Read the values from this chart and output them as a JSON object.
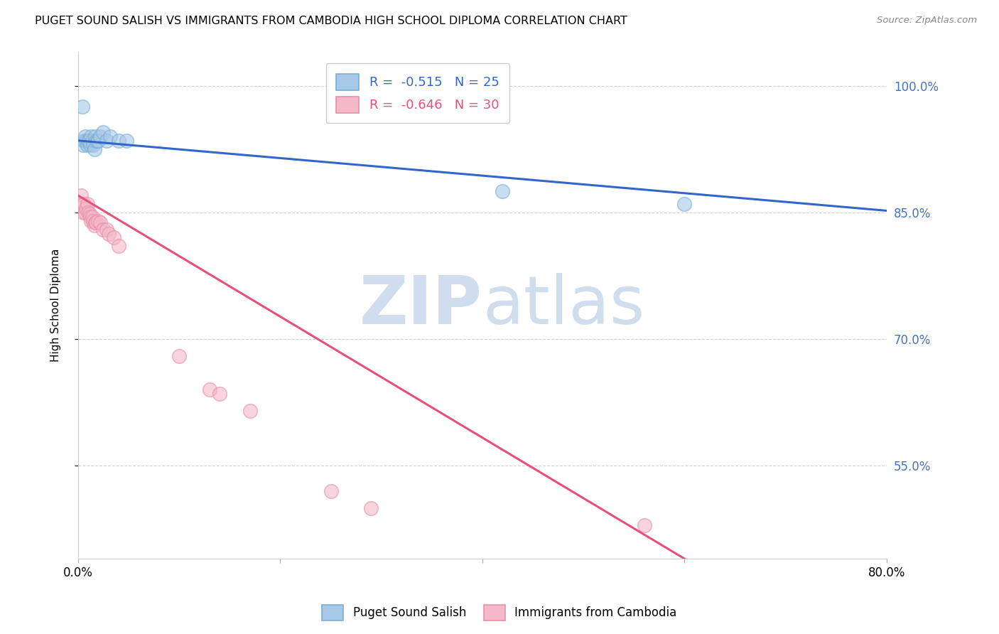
{
  "title": "PUGET SOUND SALISH VS IMMIGRANTS FROM CAMBODIA HIGH SCHOOL DIPLOMA CORRELATION CHART",
  "source": "Source: ZipAtlas.com",
  "ylabel": "High School Diploma",
  "ytick_labels": [
    "100.0%",
    "85.0%",
    "70.0%",
    "55.0%"
  ],
  "ytick_values": [
    1.0,
    0.85,
    0.7,
    0.55
  ],
  "xlim": [
    0.0,
    0.8
  ],
  "ylim": [
    0.44,
    1.04
  ],
  "blue_label": "Puget Sound Salish",
  "pink_label": "Immigrants from Cambodia",
  "blue_R": "-0.515",
  "blue_N": "25",
  "pink_R": "-0.646",
  "pink_N": "30",
  "blue_color": "#a8c8e8",
  "pink_color": "#f4b8c8",
  "blue_edge_color": "#7aafd4",
  "pink_edge_color": "#e890a8",
  "blue_line_color": "#3366cc",
  "pink_line_color": "#e8507a",
  "blue_x": [
    0.004,
    0.005,
    0.006,
    0.007,
    0.008,
    0.009,
    0.01,
    0.011,
    0.012,
    0.013,
    0.014,
    0.015,
    0.016,
    0.017,
    0.018,
    0.019,
    0.02,
    0.022,
    0.025,
    0.028,
    0.032,
    0.04,
    0.048,
    0.42,
    0.6
  ],
  "blue_y": [
    0.975,
    0.93,
    0.935,
    0.94,
    0.935,
    0.93,
    0.935,
    0.935,
    0.93,
    0.94,
    0.935,
    0.93,
    0.925,
    0.94,
    0.935,
    0.935,
    0.935,
    0.94,
    0.945,
    0.935,
    0.94,
    0.935,
    0.935,
    0.875,
    0.86
  ],
  "pink_x": [
    0.003,
    0.004,
    0.005,
    0.006,
    0.007,
    0.008,
    0.009,
    0.01,
    0.011,
    0.012,
    0.013,
    0.014,
    0.015,
    0.016,
    0.017,
    0.018,
    0.02,
    0.022,
    0.025,
    0.028,
    0.03,
    0.035,
    0.04,
    0.1,
    0.13,
    0.14,
    0.17,
    0.25,
    0.29,
    0.56
  ],
  "pink_y": [
    0.87,
    0.86,
    0.85,
    0.86,
    0.85,
    0.855,
    0.86,
    0.85,
    0.848,
    0.845,
    0.84,
    0.845,
    0.84,
    0.835,
    0.838,
    0.838,
    0.84,
    0.838,
    0.83,
    0.83,
    0.825,
    0.82,
    0.81,
    0.68,
    0.64,
    0.635,
    0.615,
    0.52,
    0.5,
    0.48
  ],
  "blue_line_x0": 0.0,
  "blue_line_x1": 0.8,
  "blue_line_y0": 0.935,
  "blue_line_y1": 0.852,
  "pink_line_x0": 0.0,
  "pink_line_x1": 0.6,
  "pink_line_y0": 0.87,
  "pink_line_y1": 0.44,
  "watermark_zip": "ZIP",
  "watermark_atlas": "atlas",
  "background_color": "#ffffff",
  "grid_color": "#d0d0d0",
  "legend_box_color": "#e8f0f8"
}
